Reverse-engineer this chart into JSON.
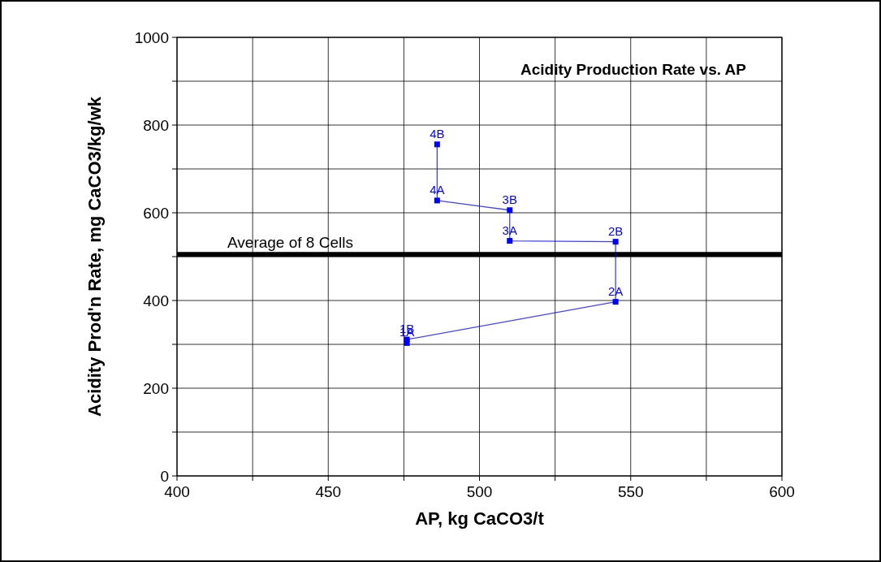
{
  "chart_data": {
    "type": "line",
    "title": "Acidity Production Rate vs. AP",
    "xlabel": "AP, kg CaCO3/t",
    "ylabel": "Acidity Prod'n Rate, mg CaCO3/kg/wk",
    "x": [
      476,
      476,
      545,
      545,
      510,
      510,
      486,
      486
    ],
    "series": [
      {
        "color": "#0000ff",
        "values": [
          303,
          311,
          397,
          534,
          536,
          606,
          628,
          756
        ]
      }
    ],
    "marker": "square",
    "grid": true,
    "xlim": [
      400,
      600
    ],
    "xticks": [
      400,
      {
        "value": 425,
        "label": null
      },
      450,
      {
        "value": 475,
        "label": null
      },
      500,
      {
        "value": 525,
        "label": null
      },
      550,
      {
        "value": 575,
        "label": null
      },
      600
    ],
    "ylim": [
      0,
      1000
    ],
    "yticks": [
      0,
      {
        "value": 100,
        "label": null
      },
      200,
      {
        "value": 300,
        "label": null
      },
      400,
      {
        "value": 500,
        "label": null
      },
      600,
      {
        "value": 700,
        "label": null
      },
      800,
      {
        "value": 900,
        "label": null
      },
      1000
    ],
    "ref_lines": [
      {
        "axis": "y",
        "value": 505,
        "label": "Average of 8 Cells",
        "color": "#000000"
      }
    ],
    "annotations": [
      {
        "text": "1A",
        "x": 476,
        "y": 303
      },
      {
        "text": "1B",
        "x": 476,
        "y": 311
      },
      {
        "text": "2A",
        "x": 545,
        "y": 397
      },
      {
        "text": "2B",
        "x": 545,
        "y": 534
      },
      {
        "text": "3A",
        "x": 510,
        "y": 536
      },
      {
        "text": "3B",
        "x": 510,
        "y": 606
      },
      {
        "text": "4A",
        "x": 486,
        "y": 628
      },
      {
        "text": "4B",
        "x": 486,
        "y": 756
      }
    ]
  }
}
